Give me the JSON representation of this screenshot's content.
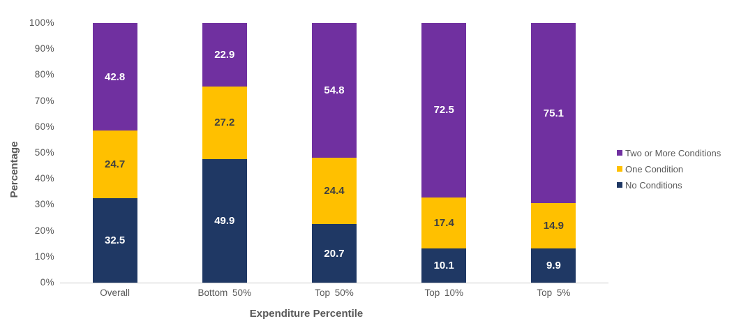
{
  "chart_data": {
    "type": "bar",
    "stacked": true,
    "orientation": "vertical",
    "title": "",
    "xlabel": "Expenditure Percentile",
    "ylabel": "Percentage",
    "categories": [
      "Overall",
      "Bottom 50%",
      "Top 50%",
      "Top 10%",
      "Top 5%"
    ],
    "series": [
      {
        "name": "No Conditions",
        "color": "#1F3864",
        "label_color": "#FFFFFF",
        "values": [
          32.5,
          49.9,
          20.7,
          10.1,
          9.9
        ]
      },
      {
        "name": "One Condition",
        "color": "#FFC000",
        "label_color": "#404040",
        "values": [
          24.7,
          27.2,
          24.4,
          17.4,
          14.9
        ]
      },
      {
        "name": "Two or More Conditions",
        "color": "#7030A0",
        "label_color": "#FFFFFF",
        "values": [
          42.8,
          22.9,
          54.8,
          72.5,
          75.1
        ]
      }
    ],
    "y_tick_labels": [
      "0%",
      "10%",
      "20%",
      "30%",
      "40%",
      "50%",
      "60%",
      "70%",
      "80%",
      "90%",
      "100%"
    ],
    "y_tick_values": [
      0,
      10,
      20,
      30,
      40,
      50,
      60,
      70,
      80,
      90,
      100
    ],
    "ylim": [
      0,
      100
    ],
    "grid": false,
    "legend_position": "right",
    "legend_order": [
      "Two or More Conditions",
      "One Condition",
      "No Conditions"
    ],
    "colors": {
      "axis_text": "#595959",
      "axis_line": "#C9C9C9",
      "background": "#FFFFFF"
    }
  }
}
